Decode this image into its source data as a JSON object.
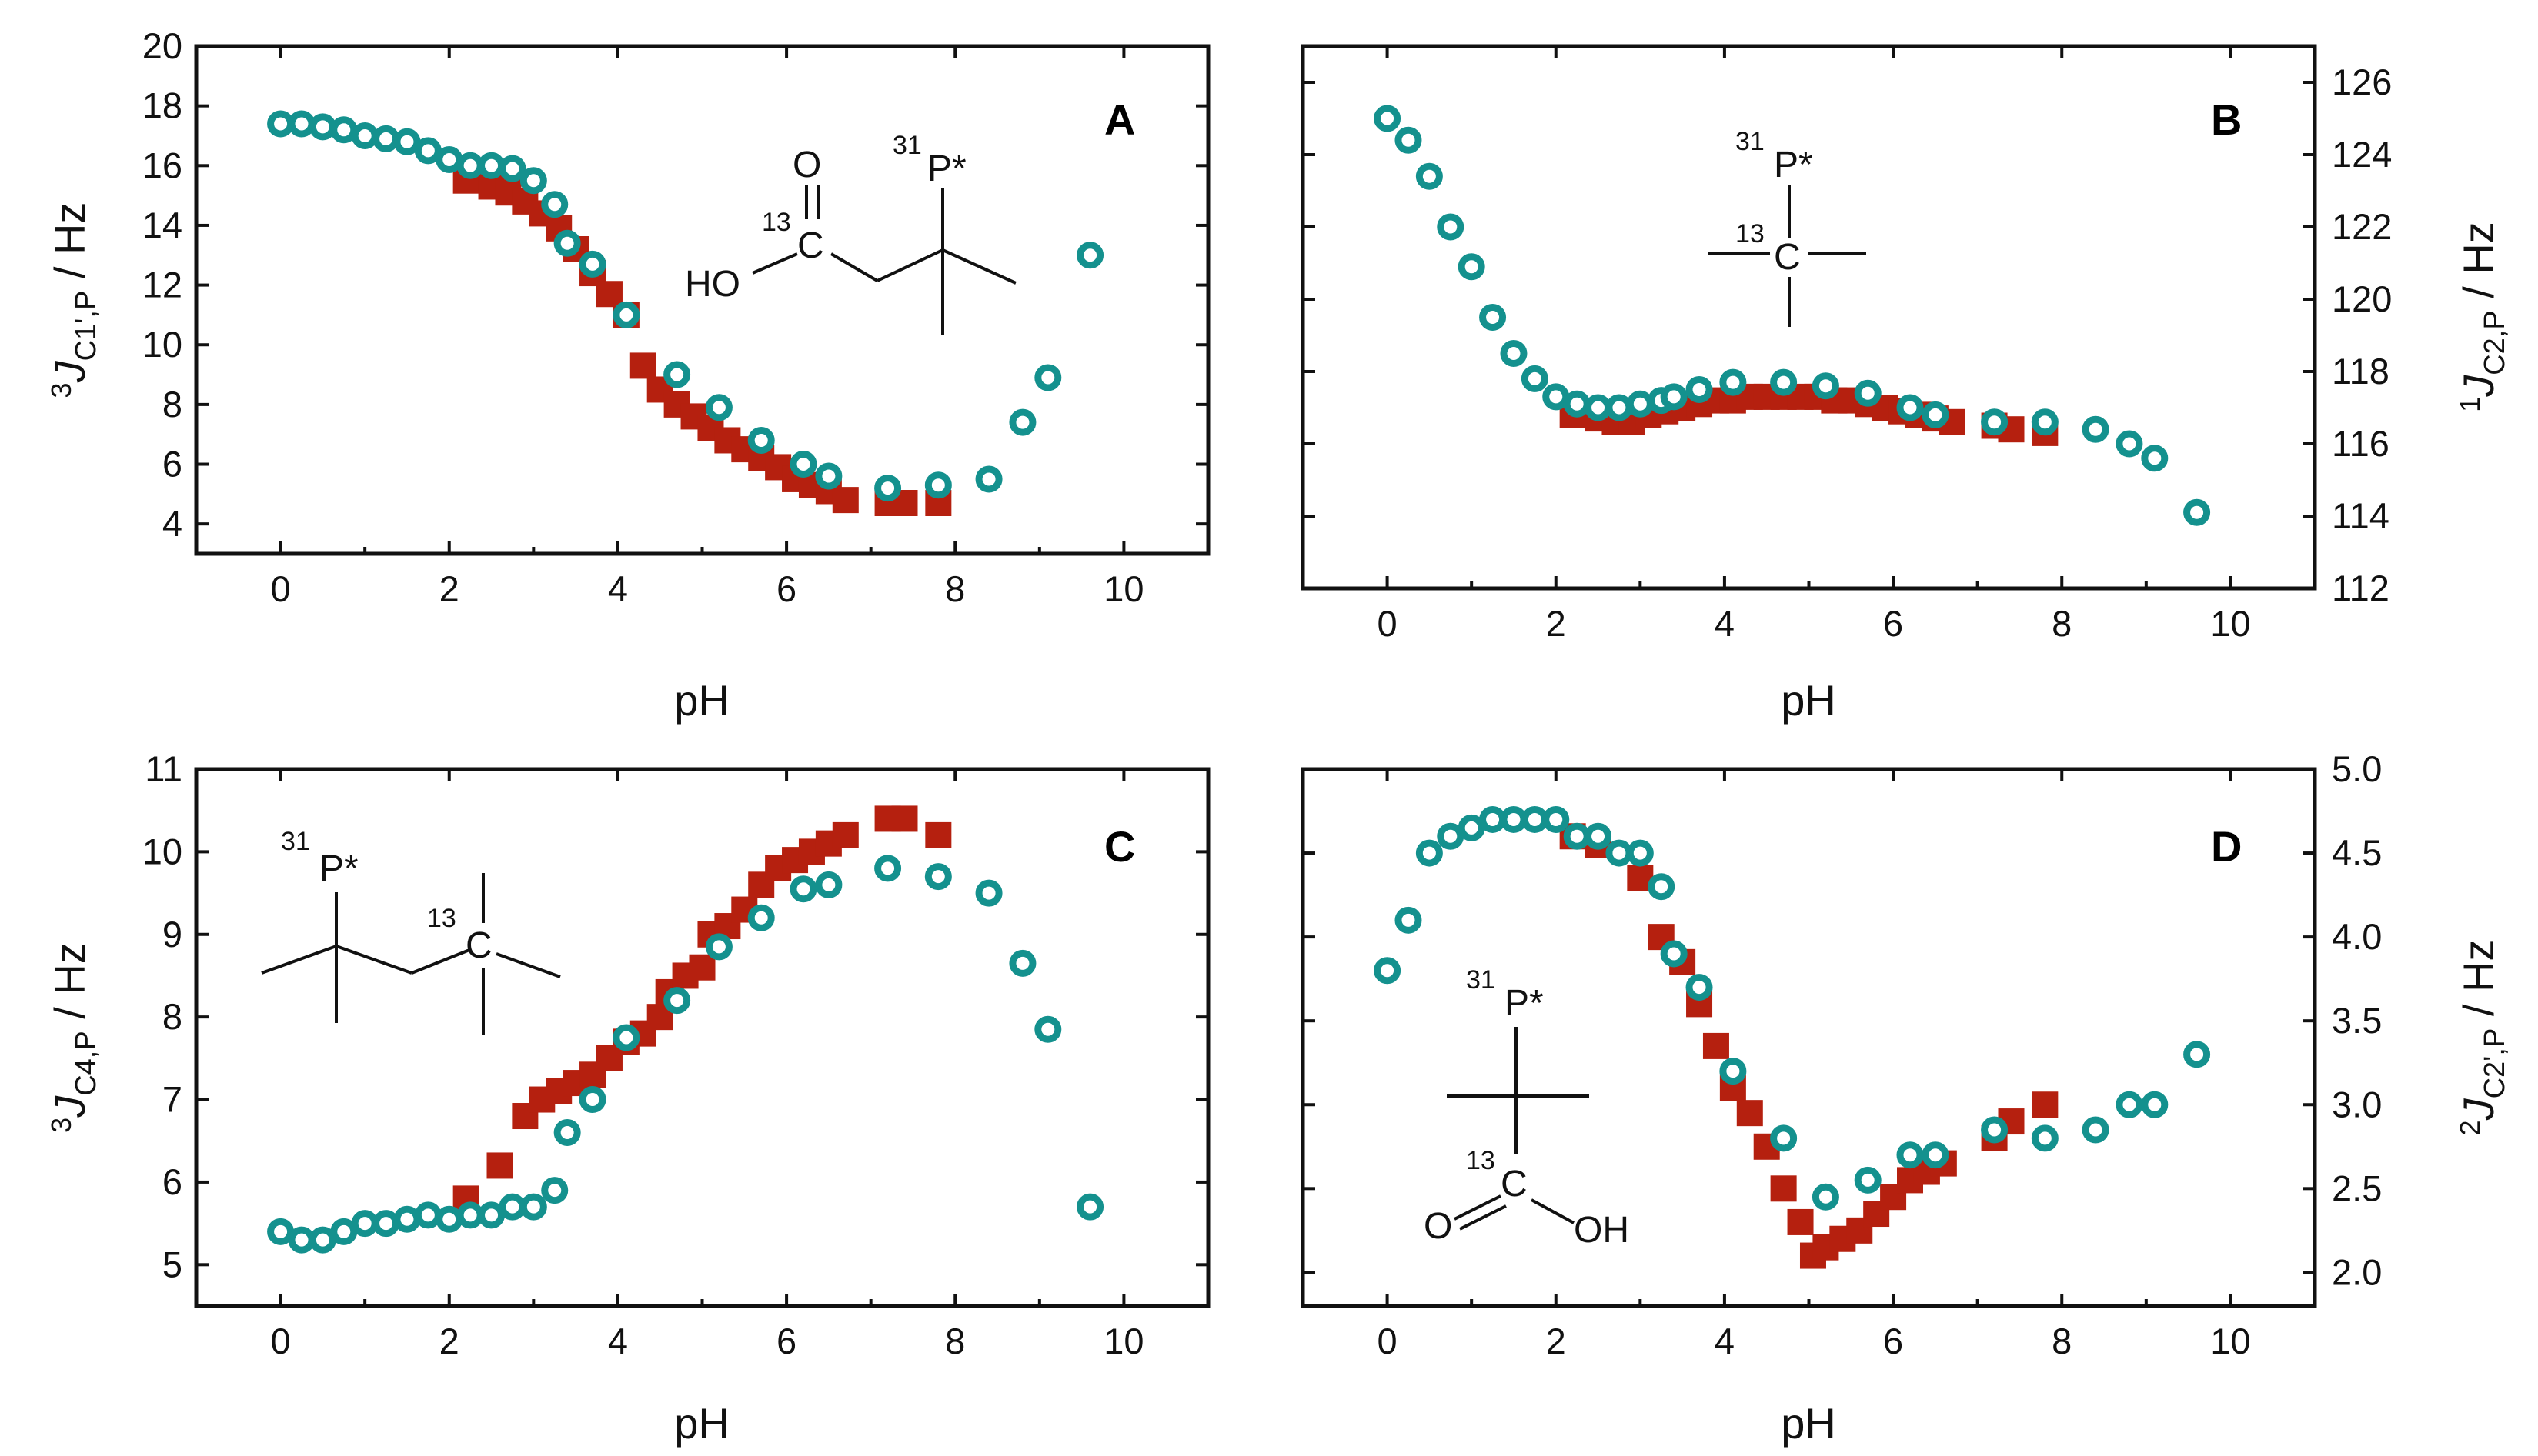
{
  "colors": {
    "acid": "#b5200f",
    "ester": "#14918e",
    "frame": "#111111"
  },
  "x_axis_label": "pH",
  "panels": [
    {
      "id": "A",
      "letter": "A",
      "y_side": "left",
      "y_label": {
        "sup": "3",
        "main": "J",
        "sub": "C1',P",
        "unit": " / Hz"
      },
      "molecule": {
        "lines": [
          "O",
          "C",
          "HO",
          "P*"
        ],
        "sups": [
          "13",
          "31"
        ]
      }
    },
    {
      "id": "B",
      "letter": "B",
      "y_side": "right",
      "y_label": {
        "sup": "1",
        "main": "J",
        "sub": "C2,P",
        "unit": " / Hz"
      },
      "molecule": {
        "lines": [
          "P*",
          "C"
        ],
        "sups": [
          "31",
          "13"
        ]
      }
    },
    {
      "id": "C",
      "letter": "C",
      "y_side": "left",
      "y_label": {
        "sup": "3",
        "main": "J",
        "sub": "C4,P",
        "unit": " / Hz"
      },
      "molecule": {
        "lines": [
          "P*",
          "C"
        ],
        "sups": [
          "31",
          "13"
        ]
      }
    },
    {
      "id": "D",
      "letter": "D",
      "y_side": "right",
      "y_label": {
        "sup": "2",
        "main": "J",
        "sub": "C2',P",
        "unit": " / Hz"
      },
      "molecule": {
        "lines": [
          "P*",
          "C",
          "O",
          "OH"
        ],
        "sups": [
          "31",
          "13"
        ]
      }
    }
  ],
  "chart_data": [
    {
      "type": "scatter",
      "panel": "A",
      "xlabel": "pH",
      "ylabel": "3J C1',P / Hz",
      "xlim": [
        -1,
        11.0
      ],
      "ylim": [
        3,
        20
      ],
      "xticks": [
        0,
        2,
        4,
        6,
        8,
        10
      ],
      "yticks": [
        4,
        6,
        8,
        10,
        12,
        14,
        16,
        18,
        20
      ],
      "series": [
        {
          "name": "squares",
          "marker": "square",
          "points": [
            [
              2.2,
              15.5
            ],
            [
              2.5,
              15.3
            ],
            [
              2.7,
              15.1
            ],
            [
              2.9,
              14.8
            ],
            [
              3.1,
              14.4
            ],
            [
              3.3,
              13.9
            ],
            [
              3.5,
              13.2
            ],
            [
              3.7,
              12.4
            ],
            [
              3.9,
              11.7
            ],
            [
              4.1,
              11.0
            ],
            [
              4.3,
              9.3
            ],
            [
              4.5,
              8.5
            ],
            [
              4.7,
              8.0
            ],
            [
              4.9,
              7.6
            ],
            [
              5.1,
              7.2
            ],
            [
              5.3,
              6.8
            ],
            [
              5.5,
              6.5
            ],
            [
              5.7,
              6.2
            ],
            [
              5.9,
              5.9
            ],
            [
              6.1,
              5.5
            ],
            [
              6.3,
              5.3
            ],
            [
              6.5,
              5.1
            ],
            [
              6.7,
              4.8
            ],
            [
              7.2,
              4.7
            ],
            [
              7.4,
              4.7
            ],
            [
              7.8,
              4.7
            ]
          ]
        },
        {
          "name": "circles",
          "marker": "circle",
          "points": [
            [
              0.0,
              17.4
            ],
            [
              0.25,
              17.4
            ],
            [
              0.5,
              17.3
            ],
            [
              0.75,
              17.2
            ],
            [
              1.0,
              17.0
            ],
            [
              1.25,
              16.9
            ],
            [
              1.5,
              16.8
            ],
            [
              1.75,
              16.5
            ],
            [
              2.0,
              16.2
            ],
            [
              2.25,
              16.0
            ],
            [
              2.5,
              16.0
            ],
            [
              2.75,
              15.9
            ],
            [
              3.0,
              15.5
            ],
            [
              3.25,
              14.7
            ],
            [
              3.4,
              13.4
            ],
            [
              3.7,
              12.7
            ],
            [
              4.1,
              11.0
            ],
            [
              4.7,
              9.0
            ],
            [
              5.2,
              7.9
            ],
            [
              5.7,
              6.8
            ],
            [
              6.2,
              6.0
            ],
            [
              6.5,
              5.6
            ],
            [
              7.2,
              5.2
            ],
            [
              7.8,
              5.3
            ],
            [
              8.4,
              5.5
            ],
            [
              8.8,
              7.4
            ],
            [
              9.1,
              8.9
            ],
            [
              9.6,
              13.0
            ]
          ]
        }
      ]
    },
    {
      "type": "scatter",
      "panel": "B",
      "xlabel": "pH",
      "ylabel": "1J C2,P / Hz",
      "xlim": [
        -1,
        11.0
      ],
      "ylim": [
        112,
        127
      ],
      "xticks": [
        0,
        2,
        4,
        6,
        8,
        10
      ],
      "yticks": [
        112,
        114,
        116,
        118,
        120,
        122,
        124,
        126
      ],
      "series": [
        {
          "name": "squares",
          "marker": "square",
          "points": [
            [
              2.2,
              116.8
            ],
            [
              2.5,
              116.7
            ],
            [
              2.7,
              116.6
            ],
            [
              2.9,
              116.6
            ],
            [
              3.1,
              116.8
            ],
            [
              3.3,
              116.9
            ],
            [
              3.5,
              117.0
            ],
            [
              3.7,
              117.1
            ],
            [
              3.9,
              117.2
            ],
            [
              4.1,
              117.2
            ],
            [
              4.3,
              117.3
            ],
            [
              4.5,
              117.3
            ],
            [
              4.7,
              117.3
            ],
            [
              4.9,
              117.3
            ],
            [
              5.1,
              117.3
            ],
            [
              5.3,
              117.2
            ],
            [
              5.5,
              117.2
            ],
            [
              5.7,
              117.1
            ],
            [
              5.9,
              117.0
            ],
            [
              6.1,
              116.9
            ],
            [
              6.3,
              116.8
            ],
            [
              6.5,
              116.7
            ],
            [
              6.7,
              116.6
            ],
            [
              7.2,
              116.5
            ],
            [
              7.4,
              116.4
            ],
            [
              7.8,
              116.3
            ]
          ]
        },
        {
          "name": "circles",
          "marker": "circle",
          "points": [
            [
              0.0,
              125.0
            ],
            [
              0.25,
              124.4
            ],
            [
              0.5,
              123.4
            ],
            [
              0.75,
              122.0
            ],
            [
              1.0,
              120.9
            ],
            [
              1.25,
              119.5
            ],
            [
              1.5,
              118.5
            ],
            [
              1.75,
              117.8
            ],
            [
              2.0,
              117.3
            ],
            [
              2.25,
              117.1
            ],
            [
              2.5,
              117.0
            ],
            [
              2.75,
              117.0
            ],
            [
              3.0,
              117.1
            ],
            [
              3.25,
              117.2
            ],
            [
              3.4,
              117.3
            ],
            [
              3.7,
              117.5
            ],
            [
              4.1,
              117.7
            ],
            [
              4.7,
              117.7
            ],
            [
              5.2,
              117.6
            ],
            [
              5.7,
              117.4
            ],
            [
              6.2,
              117.0
            ],
            [
              6.5,
              116.8
            ],
            [
              7.2,
              116.6
            ],
            [
              7.8,
              116.6
            ],
            [
              8.4,
              116.4
            ],
            [
              8.8,
              116.0
            ],
            [
              9.1,
              115.6
            ],
            [
              9.6,
              114.1
            ]
          ]
        }
      ]
    },
    {
      "type": "scatter",
      "panel": "C",
      "xlabel": "pH",
      "ylabel": "3J C4,P / Hz",
      "xlim": [
        -1,
        11.0
      ],
      "ylim": [
        4.5,
        11
      ],
      "xticks": [
        0,
        2,
        4,
        6,
        8,
        10
      ],
      "yticks": [
        5,
        6,
        7,
        8,
        9,
        10,
        11
      ],
      "series": [
        {
          "name": "squares",
          "marker": "square",
          "points": [
            [
              2.2,
              5.8
            ],
            [
              2.6,
              6.2
            ],
            [
              2.9,
              6.8
            ],
            [
              3.1,
              7.0
            ],
            [
              3.3,
              7.1
            ],
            [
              3.5,
              7.2
            ],
            [
              3.7,
              7.3
            ],
            [
              3.9,
              7.5
            ],
            [
              4.1,
              7.7
            ],
            [
              4.3,
              7.8
            ],
            [
              4.5,
              8.0
            ],
            [
              4.6,
              8.3
            ],
            [
              4.8,
              8.5
            ],
            [
              5.0,
              8.6
            ],
            [
              5.1,
              9.0
            ],
            [
              5.3,
              9.1
            ],
            [
              5.5,
              9.3
            ],
            [
              5.7,
              9.6
            ],
            [
              5.9,
              9.8
            ],
            [
              6.1,
              9.9
            ],
            [
              6.3,
              10.0
            ],
            [
              6.5,
              10.1
            ],
            [
              6.7,
              10.2
            ],
            [
              7.2,
              10.4
            ],
            [
              7.4,
              10.4
            ],
            [
              7.8,
              10.2
            ]
          ]
        },
        {
          "name": "circles",
          "marker": "circle",
          "points": [
            [
              0.0,
              5.4
            ],
            [
              0.25,
              5.3
            ],
            [
              0.5,
              5.3
            ],
            [
              0.75,
              5.4
            ],
            [
              1.0,
              5.5
            ],
            [
              1.25,
              5.5
            ],
            [
              1.5,
              5.55
            ],
            [
              1.75,
              5.6
            ],
            [
              2.0,
              5.55
            ],
            [
              2.25,
              5.6
            ],
            [
              2.5,
              5.6
            ],
            [
              2.75,
              5.7
            ],
            [
              3.0,
              5.7
            ],
            [
              3.25,
              5.9
            ],
            [
              3.4,
              6.6
            ],
            [
              3.7,
              7.0
            ],
            [
              4.1,
              7.75
            ],
            [
              4.7,
              8.2
            ],
            [
              5.2,
              8.85
            ],
            [
              5.7,
              9.2
            ],
            [
              6.2,
              9.55
            ],
            [
              6.5,
              9.6
            ],
            [
              7.2,
              9.8
            ],
            [
              7.8,
              9.7
            ],
            [
              8.4,
              9.5
            ],
            [
              8.8,
              8.65
            ],
            [
              9.1,
              7.85
            ],
            [
              9.6,
              5.7
            ]
          ]
        }
      ]
    },
    {
      "type": "scatter",
      "panel": "D",
      "xlabel": "pH",
      "ylabel": "2J C2',P / Hz",
      "xlim": [
        -1,
        11.0
      ],
      "ylim": [
        1.8,
        5.0
      ],
      "xticks": [
        0,
        2,
        4,
        6,
        8,
        10
      ],
      "yticks": [
        2.0,
        2.5,
        3.0,
        3.5,
        4.0,
        4.5,
        5.0
      ],
      "series": [
        {
          "name": "squares",
          "marker": "square",
          "points": [
            [
              2.2,
              4.6
            ],
            [
              2.5,
              4.55
            ],
            [
              3.0,
              4.35
            ],
            [
              3.25,
              4.0
            ],
            [
              3.5,
              3.85
            ],
            [
              3.7,
              3.6
            ],
            [
              3.9,
              3.35
            ],
            [
              4.1,
              3.1
            ],
            [
              4.3,
              2.95
            ],
            [
              4.5,
              2.75
            ],
            [
              4.7,
              2.5
            ],
            [
              4.9,
              2.3
            ],
            [
              5.05,
              2.1
            ],
            [
              5.2,
              2.15
            ],
            [
              5.4,
              2.2
            ],
            [
              5.6,
              2.25
            ],
            [
              5.8,
              2.35
            ],
            [
              6.0,
              2.45
            ],
            [
              6.2,
              2.55
            ],
            [
              6.4,
              2.6
            ],
            [
              6.6,
              2.65
            ],
            [
              7.2,
              2.8
            ],
            [
              7.4,
              2.9
            ],
            [
              7.8,
              3.0
            ]
          ]
        },
        {
          "name": "circles",
          "marker": "circle",
          "points": [
            [
              0.0,
              3.8
            ],
            [
              0.25,
              4.1
            ],
            [
              0.5,
              4.5
            ],
            [
              0.75,
              4.6
            ],
            [
              1.0,
              4.65
            ],
            [
              1.25,
              4.7
            ],
            [
              1.5,
              4.7
            ],
            [
              1.75,
              4.7
            ],
            [
              2.0,
              4.7
            ],
            [
              2.25,
              4.6
            ],
            [
              2.5,
              4.6
            ],
            [
              2.75,
              4.5
            ],
            [
              3.0,
              4.5
            ],
            [
              3.25,
              4.3
            ],
            [
              3.4,
              3.9
            ],
            [
              3.7,
              3.7
            ],
            [
              4.1,
              3.2
            ],
            [
              4.7,
              2.8
            ],
            [
              5.2,
              2.45
            ],
            [
              5.7,
              2.55
            ],
            [
              6.2,
              2.7
            ],
            [
              6.5,
              2.7
            ],
            [
              7.2,
              2.85
            ],
            [
              7.8,
              2.8
            ],
            [
              8.4,
              2.85
            ],
            [
              8.8,
              3.0
            ],
            [
              9.1,
              3.0
            ],
            [
              9.6,
              3.3
            ]
          ]
        }
      ]
    }
  ]
}
